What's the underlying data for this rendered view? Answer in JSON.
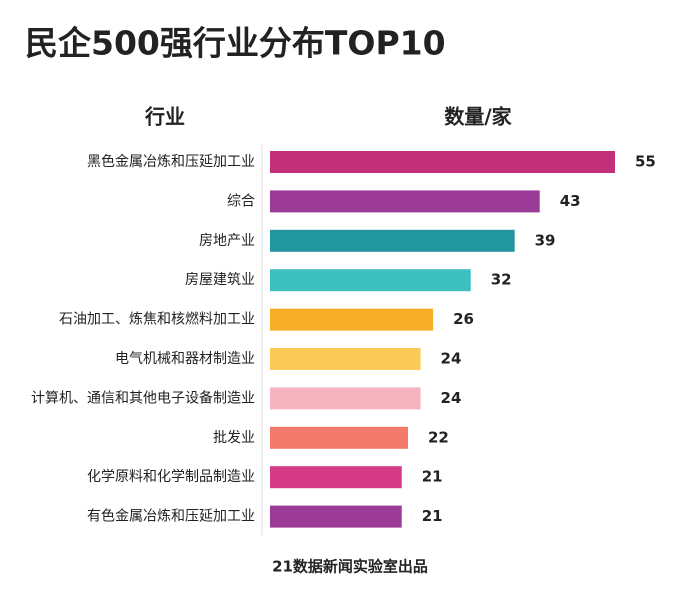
{
  "chart_data": {
    "type": "bar",
    "orientation": "horizontal",
    "title": "民企500强行业分布TOP10",
    "category_header": "行业",
    "value_header": "数量/家",
    "source": "21数据新闻实验室出品",
    "categories": [
      "黑色金属冶炼和压延加工业",
      "综合",
      "房地产业",
      "房屋建筑业",
      "石油加工、炼焦和核燃料加工业",
      "电气机械和器材制造业",
      "计算机、通信和其他电子设备制造业",
      "批发业",
      "化学原料和化学制品制造业",
      "有色金属冶炼和压延加工业"
    ],
    "values": [
      55,
      43,
      39,
      32,
      26,
      24,
      24,
      22,
      21,
      21
    ],
    "colors": [
      "#c2307a",
      "#9b3b97",
      "#21969e",
      "#3dbfc0",
      "#f5ae26",
      "#fbc956",
      "#f6b3c0",
      "#f47b6b",
      "#d43a86",
      "#9b3b97"
    ]
  }
}
